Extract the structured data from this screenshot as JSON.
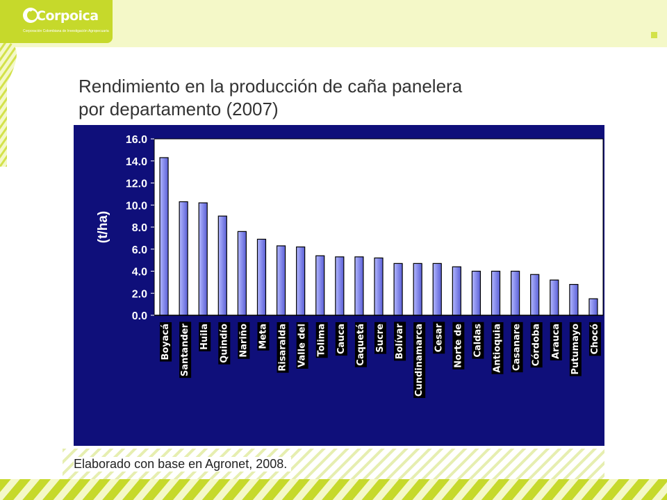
{
  "brand": {
    "name": "Corpoica",
    "tagline": "Corporación Colombiana de Investigación Agropecuaria",
    "accent_color": "#c6d92b",
    "pale_color": "#f4f8c8"
  },
  "slide": {
    "title": "Rendimiento en la producción de caña panelera por departamento (2007)",
    "caption": "Elaborado con base en Agronet, 2008."
  },
  "chart_data": {
    "type": "bar",
    "xlabel": "",
    "ylabel": "(t/ha)",
    "ylim": [
      0,
      16
    ],
    "yticks": [
      0,
      2,
      4,
      6,
      8,
      10,
      12,
      14,
      16
    ],
    "ytick_labels": [
      "0.0",
      "2.0",
      "4.0",
      "6.0",
      "8.0",
      "10.0",
      "12.0",
      "14.0",
      "16.0"
    ],
    "grid": false,
    "legend": "none",
    "categories": [
      "Boyacá",
      "Santander",
      "Huila",
      "Quindío",
      "Nariño",
      "Meta",
      "Risaralda",
      "Valle del",
      "Tolima",
      "Cauca",
      "Caquetá",
      "Sucre",
      "Bolívar",
      "Cundinamarca",
      "Cesar",
      "Norte de",
      "Caldas",
      "Antioquia",
      "Casanare",
      "Córdoba",
      "Arauca",
      "Putumayo",
      "Chocó"
    ],
    "values": [
      14.3,
      10.3,
      10.2,
      9.0,
      7.6,
      6.9,
      6.3,
      6.2,
      5.4,
      5.3,
      5.3,
      5.2,
      4.7,
      4.7,
      4.7,
      4.4,
      4.0,
      4.0,
      4.0,
      3.7,
      3.2,
      2.8,
      1.5
    ],
    "bar_color_top": "#b3b8ff",
    "bar_color_bottom": "#5a5fd6",
    "plot_background": "#ffffff",
    "frame_background": "#0f0f7a"
  }
}
